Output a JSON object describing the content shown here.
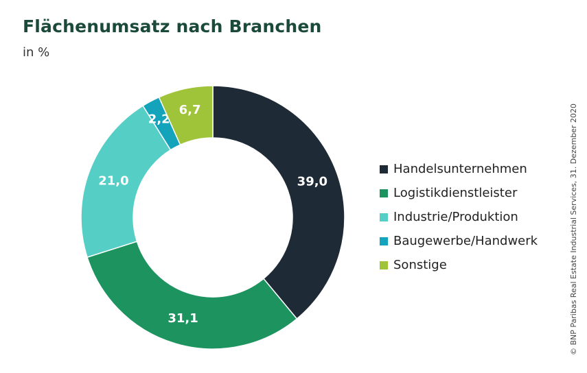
{
  "chart_data": {
    "type": "pie",
    "title": "Flächenumsatz nach Branchen",
    "subtitle": "in %",
    "categories": [
      "Handelsunternehmen",
      "Logistikdienstleister",
      "Industrie/Produktion",
      "Baugewerbe/Handwerk",
      "Sonstige"
    ],
    "values": [
      39.0,
      31.1,
      21.0,
      2.2,
      6.7
    ],
    "value_labels": [
      "39,0",
      "31,1",
      "21,0",
      "2,2",
      "6,7"
    ],
    "colors": [
      "#1e2b36",
      "#1d9360",
      "#55cec6",
      "#13a3bb",
      "#9fc43a"
    ],
    "legend_position": "right",
    "source": "© BNP Paribas Real Estate Industrial Services, 31. Dezember 2020"
  }
}
